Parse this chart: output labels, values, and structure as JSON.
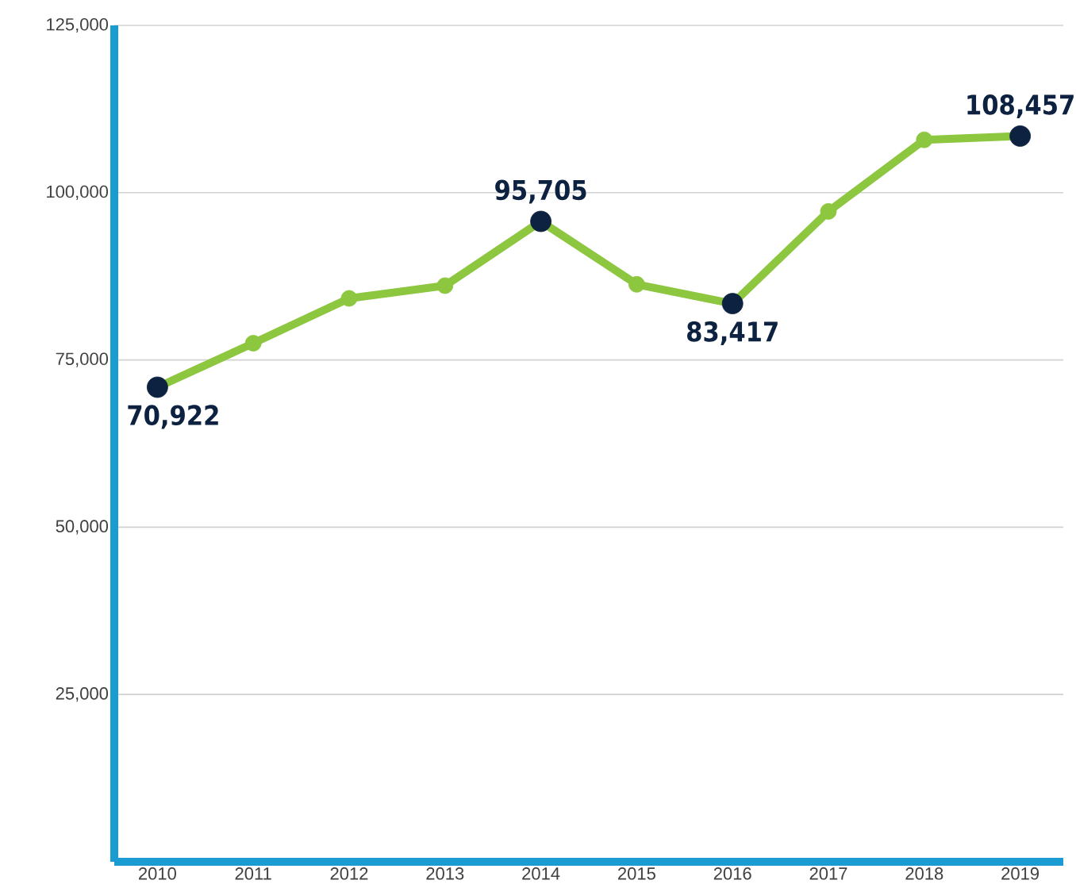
{
  "chart_data": {
    "type": "line",
    "categories": [
      "2010",
      "2011",
      "2012",
      "2013",
      "2014",
      "2015",
      "2016",
      "2017",
      "2018",
      "2019"
    ],
    "values": [
      70922,
      77500,
      84200,
      86100,
      95705,
      86300,
      83417,
      97200,
      107900,
      108457
    ],
    "value_labels": [
      "70,922",
      null,
      null,
      null,
      "95,705",
      null,
      "83,417",
      null,
      null,
      "108,457"
    ],
    "color": "#8dc63f",
    "colors": [
      "#0d2240",
      "#8dc63f",
      "#8dc63f",
      "#8dc63f",
      "#0d2240",
      "#8dc63f",
      "#0d2240",
      "#8dc63f",
      "#8dc63f",
      "#0d2240"
    ],
    "marker": "circle",
    "ylim": [
      0,
      125000
    ],
    "yticks": [
      {
        "value": 25000,
        "label": "25,000"
      },
      {
        "value": 50000,
        "label": "50,000"
      },
      {
        "value": 75000,
        "label": "75,000"
      },
      {
        "value": 100000,
        "label": "100,000"
      },
      {
        "value": 125000,
        "label": "125,000"
      }
    ],
    "grid": "y"
  }
}
